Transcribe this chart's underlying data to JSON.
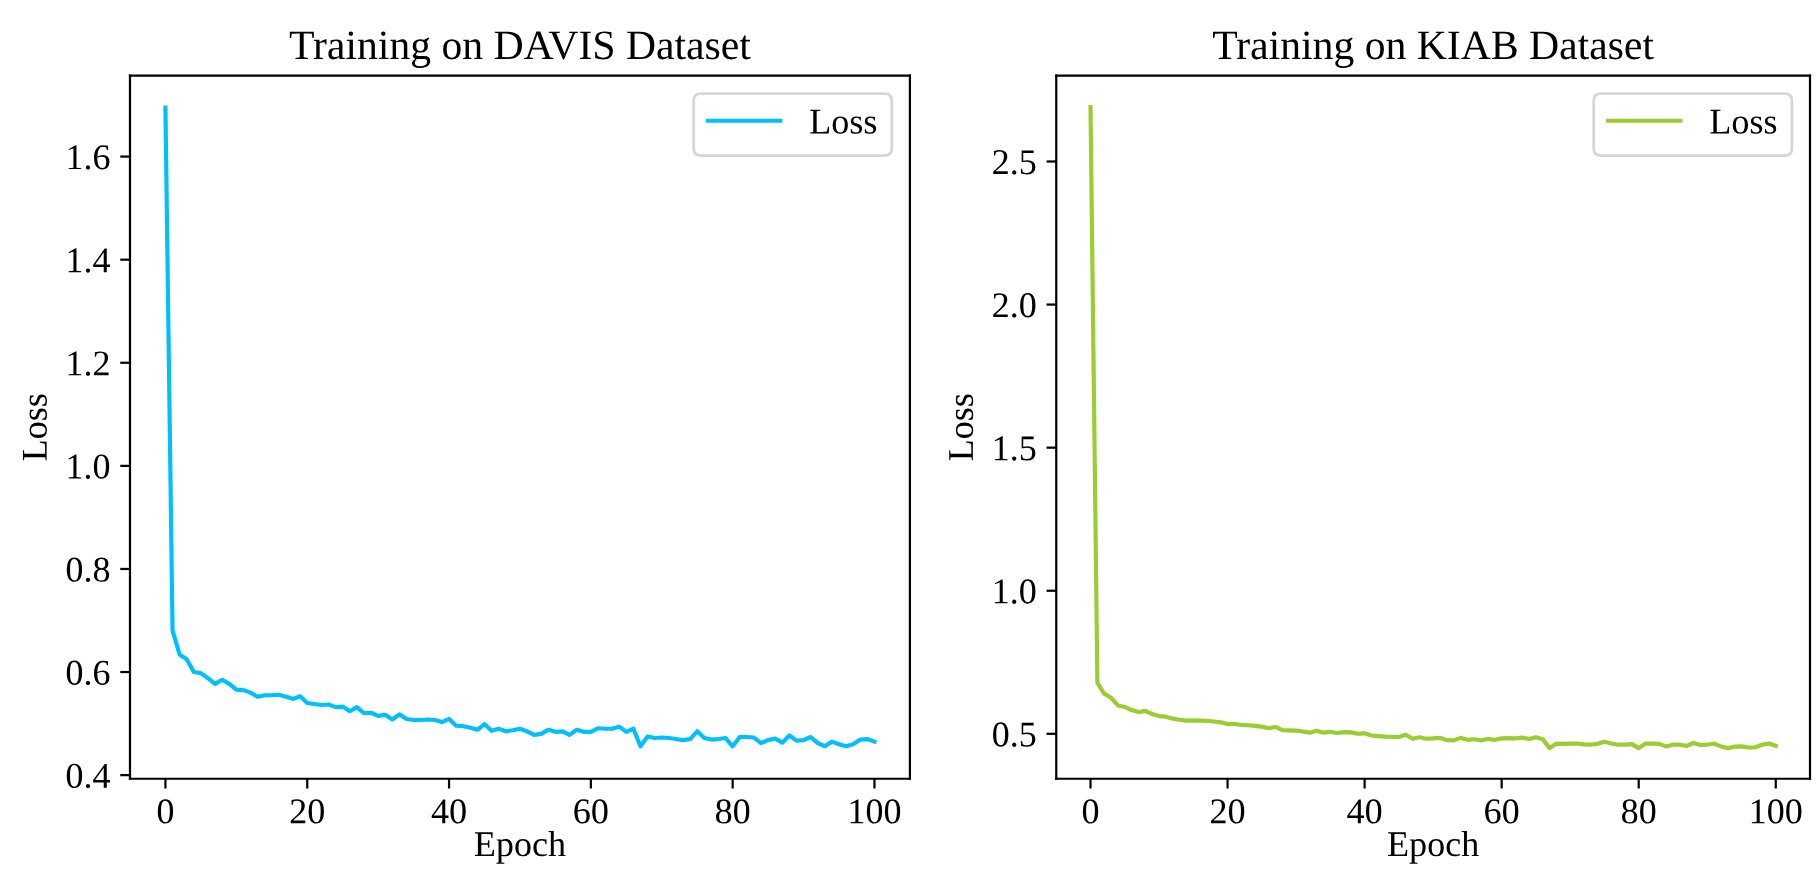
{
  "chart_data": [
    {
      "type": "line",
      "title": "Training on DAVIS Dataset",
      "xlabel": "Epoch",
      "ylabel": "Loss",
      "legend": "top right",
      "grid": false,
      "marker": "none",
      "line_style": "solid",
      "xlim": [
        -5,
        105
      ],
      "xticks": [
        0,
        20,
        40,
        60,
        80,
        100
      ],
      "ylim": [
        0.393,
        1.757
      ],
      "yticks": [
        {
          "value": 0.4,
          "label": "0.4"
        },
        {
          "value": 0.6,
          "label": "0.6"
        },
        {
          "value": 0.8,
          "label": "0.8"
        },
        {
          "value": 1.0,
          "label": "1.0"
        },
        {
          "value": 1.2,
          "label": "1.2"
        },
        {
          "value": 1.4,
          "label": "1.4"
        },
        {
          "value": 1.6,
          "label": "1.6"
        }
      ],
      "x": [
        0,
        1,
        2,
        3,
        4,
        5,
        6,
        7,
        8,
        9,
        10,
        11,
        12,
        13,
        14,
        15,
        16,
        17,
        18,
        19,
        20,
        21,
        22,
        23,
        24,
        25,
        26,
        27,
        28,
        29,
        30,
        31,
        32,
        33,
        34,
        35,
        36,
        37,
        38,
        39,
        40,
        41,
        42,
        43,
        44,
        45,
        46,
        47,
        48,
        49,
        50,
        51,
        52,
        53,
        54,
        55,
        56,
        57,
        58,
        59,
        60,
        61,
        62,
        63,
        64,
        65,
        66,
        67,
        68,
        69,
        70,
        71,
        72,
        73,
        74,
        75,
        76,
        77,
        78,
        79,
        80,
        81,
        82,
        83,
        84,
        85,
        86,
        87,
        88,
        89,
        90,
        91,
        92,
        93,
        94,
        95,
        96,
        97,
        98,
        99,
        100
      ],
      "series": [
        {
          "name": "Loss",
          "color": "#00bfff",
          "values": [
            1.695,
            0.681,
            0.634,
            0.625,
            0.6,
            0.598,
            0.588,
            0.577,
            0.585,
            0.577,
            0.566,
            0.565,
            0.56,
            0.552,
            0.555,
            0.555,
            0.556,
            0.552,
            0.548,
            0.553,
            0.54,
            0.538,
            0.536,
            0.537,
            0.532,
            0.533,
            0.524,
            0.532,
            0.52,
            0.521,
            0.515,
            0.517,
            0.508,
            0.518,
            0.509,
            0.507,
            0.507,
            0.508,
            0.507,
            0.503,
            0.509,
            0.496,
            0.495,
            0.492,
            0.488,
            0.499,
            0.486,
            0.49,
            0.485,
            0.487,
            0.49,
            0.485,
            0.478,
            0.48,
            0.488,
            0.484,
            0.485,
            0.478,
            0.488,
            0.484,
            0.484,
            0.491,
            0.49,
            0.49,
            0.494,
            0.484,
            0.49,
            0.456,
            0.475,
            0.472,
            0.473,
            0.472,
            0.47,
            0.468,
            0.47,
            0.485,
            0.472,
            0.469,
            0.47,
            0.472,
            0.456,
            0.474,
            0.474,
            0.473,
            0.462,
            0.468,
            0.471,
            0.463,
            0.477,
            0.467,
            0.468,
            0.474,
            0.462,
            0.456,
            0.465,
            0.46,
            0.456,
            0.46,
            0.469,
            0.47,
            0.465
          ]
        }
      ]
    },
    {
      "type": "line",
      "title": "Training on KIAB Dataset",
      "xlabel": "Epoch",
      "ylabel": "Loss",
      "legend": "top right",
      "grid": false,
      "marker": "none",
      "line_style": "solid",
      "xlim": [
        -5,
        105
      ],
      "xticks": [
        0,
        20,
        40,
        60,
        80,
        100
      ],
      "ylim": [
        0.343,
        2.8
      ],
      "yticks": [
        {
          "value": 0.5,
          "label": "0.5"
        },
        {
          "value": 1.0,
          "label": "1.0"
        },
        {
          "value": 1.5,
          "label": "1.5"
        },
        {
          "value": 2.0,
          "label": "2.0"
        },
        {
          "value": 2.5,
          "label": "2.5"
        }
      ],
      "x": [
        0,
        1,
        2,
        3,
        4,
        5,
        6,
        7,
        8,
        9,
        10,
        11,
        12,
        13,
        14,
        15,
        16,
        17,
        18,
        19,
        20,
        21,
        22,
        23,
        24,
        25,
        26,
        27,
        28,
        29,
        30,
        31,
        32,
        33,
        34,
        35,
        36,
        37,
        38,
        39,
        40,
        41,
        42,
        43,
        44,
        45,
        46,
        47,
        48,
        49,
        50,
        51,
        52,
        53,
        54,
        55,
        56,
        57,
        58,
        59,
        60,
        61,
        62,
        63,
        64,
        65,
        66,
        67,
        68,
        69,
        70,
        71,
        72,
        73,
        74,
        75,
        76,
        77,
        78,
        79,
        80,
        81,
        82,
        83,
        84,
        85,
        86,
        87,
        88,
        89,
        90,
        91,
        92,
        93,
        94,
        95,
        96,
        97,
        98,
        99,
        100
      ],
      "series": [
        {
          "name": "Loss",
          "color": "#9acd32",
          "values": [
            2.69,
            0.679,
            0.64,
            0.626,
            0.599,
            0.594,
            0.583,
            0.576,
            0.58,
            0.569,
            0.562,
            0.56,
            0.553,
            0.549,
            0.546,
            0.547,
            0.546,
            0.545,
            0.543,
            0.54,
            0.534,
            0.535,
            0.531,
            0.53,
            0.528,
            0.525,
            0.52,
            0.524,
            0.513,
            0.512,
            0.511,
            0.508,
            0.504,
            0.511,
            0.504,
            0.507,
            0.503,
            0.506,
            0.505,
            0.5,
            0.502,
            0.494,
            0.492,
            0.49,
            0.489,
            0.489,
            0.497,
            0.483,
            0.488,
            0.483,
            0.484,
            0.486,
            0.478,
            0.477,
            0.486,
            0.479,
            0.481,
            0.477,
            0.482,
            0.479,
            0.484,
            0.485,
            0.484,
            0.487,
            0.482,
            0.488,
            0.481,
            0.45,
            0.466,
            0.465,
            0.466,
            0.466,
            0.463,
            0.462,
            0.465,
            0.472,
            0.466,
            0.462,
            0.462,
            0.464,
            0.45,
            0.466,
            0.466,
            0.465,
            0.456,
            0.462,
            0.462,
            0.458,
            0.468,
            0.461,
            0.462,
            0.466,
            0.456,
            0.45,
            0.455,
            0.456,
            0.452,
            0.453,
            0.462,
            0.466,
            0.458
          ]
        }
      ]
    }
  ]
}
